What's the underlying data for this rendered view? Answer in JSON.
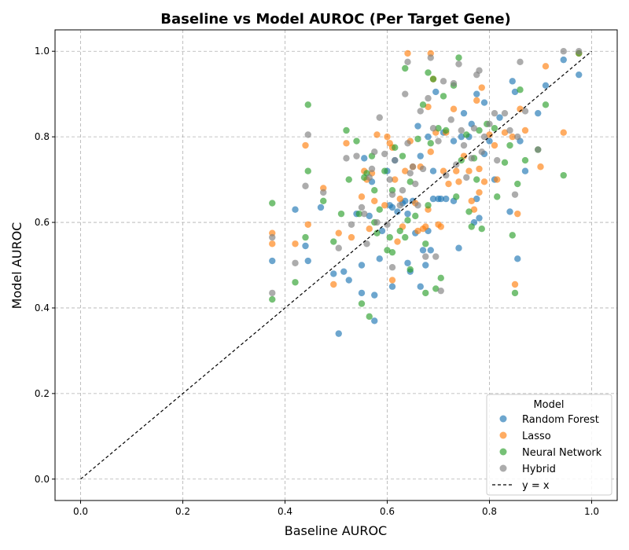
{
  "chart_data": {
    "type": "scatter",
    "title": "Baseline vs Model AUROC (Per Target Gene)",
    "xlabel": "Baseline AUROC",
    "ylabel": "Model AUROC",
    "xlim": [
      -0.05,
      1.05
    ],
    "ylim": [
      -0.05,
      1.05
    ],
    "xticks": [
      "0.0",
      "0.2",
      "0.4",
      "0.6",
      "0.8",
      "1.0"
    ],
    "yticks": [
      "0.0",
      "0.2",
      "0.4",
      "0.6",
      "0.8",
      "1.0"
    ],
    "grid": true,
    "legend_title": "Model",
    "legend_position": "lower-right",
    "reference_line": {
      "label": "y = x",
      "color": "#000000",
      "style": "dashed"
    },
    "series": [
      {
        "name": "Random Forest",
        "color": "#1f77b4",
        "points": [
          [
            0.375,
            0.51
          ],
          [
            0.42,
            0.63
          ],
          [
            0.44,
            0.545
          ],
          [
            0.445,
            0.51
          ],
          [
            0.47,
            0.635
          ],
          [
            0.495,
            0.48
          ],
          [
            0.505,
            0.34
          ],
          [
            0.515,
            0.485
          ],
          [
            0.525,
            0.465
          ],
          [
            0.54,
            0.62
          ],
          [
            0.55,
            0.5
          ],
          [
            0.55,
            0.435
          ],
          [
            0.555,
            0.75
          ],
          [
            0.565,
            0.615
          ],
          [
            0.57,
            0.695
          ],
          [
            0.575,
            0.37
          ],
          [
            0.575,
            0.43
          ],
          [
            0.585,
            0.515
          ],
          [
            0.59,
            0.58
          ],
          [
            0.6,
            0.72
          ],
          [
            0.605,
            0.64
          ],
          [
            0.61,
            0.635
          ],
          [
            0.61,
            0.45
          ],
          [
            0.615,
            0.745
          ],
          [
            0.62,
            0.625
          ],
          [
            0.63,
            0.645
          ],
          [
            0.635,
            0.65
          ],
          [
            0.64,
            0.505
          ],
          [
            0.64,
            0.62
          ],
          [
            0.645,
            0.485
          ],
          [
            0.65,
            0.65
          ],
          [
            0.655,
            0.575
          ],
          [
            0.66,
            0.825
          ],
          [
            0.665,
            0.755
          ],
          [
            0.665,
            0.45
          ],
          [
            0.67,
            0.535
          ],
          [
            0.675,
            0.5
          ],
          [
            0.68,
            0.58
          ],
          [
            0.68,
            0.8
          ],
          [
            0.685,
            0.535
          ],
          [
            0.69,
            0.72
          ],
          [
            0.69,
            0.655
          ],
          [
            0.695,
            0.905
          ],
          [
            0.7,
            0.655
          ],
          [
            0.705,
            0.655
          ],
          [
            0.71,
            0.81
          ],
          [
            0.715,
            0.655
          ],
          [
            0.73,
            0.79
          ],
          [
            0.73,
            0.65
          ],
          [
            0.74,
            0.54
          ],
          [
            0.745,
            0.8
          ],
          [
            0.75,
            0.855
          ],
          [
            0.76,
            0.8
          ],
          [
            0.765,
            0.83
          ],
          [
            0.77,
            0.6
          ],
          [
            0.775,
            0.655
          ],
          [
            0.775,
            0.9
          ],
          [
            0.78,
            0.61
          ],
          [
            0.79,
            0.76
          ],
          [
            0.79,
            0.88
          ],
          [
            0.8,
            0.79
          ],
          [
            0.81,
            0.7
          ],
          [
            0.82,
            0.845
          ],
          [
            0.84,
            0.625
          ],
          [
            0.845,
            0.93
          ],
          [
            0.85,
            0.905
          ],
          [
            0.855,
            0.515
          ],
          [
            0.86,
            0.79
          ],
          [
            0.87,
            0.72
          ],
          [
            0.895,
            0.855
          ],
          [
            0.91,
            0.92
          ],
          [
            0.945,
            0.98
          ],
          [
            0.975,
            0.945
          ]
        ]
      },
      {
        "name": "Lasso",
        "color": "#ff7f0e",
        "points": [
          [
            0.375,
            0.575
          ],
          [
            0.375,
            0.55
          ],
          [
            0.42,
            0.55
          ],
          [
            0.44,
            0.78
          ],
          [
            0.445,
            0.595
          ],
          [
            0.475,
            0.68
          ],
          [
            0.495,
            0.455
          ],
          [
            0.505,
            0.575
          ],
          [
            0.52,
            0.785
          ],
          [
            0.53,
            0.565
          ],
          [
            0.55,
            0.66
          ],
          [
            0.555,
            0.72
          ],
          [
            0.56,
            0.7
          ],
          [
            0.565,
            0.585
          ],
          [
            0.57,
            0.715
          ],
          [
            0.575,
            0.65
          ],
          [
            0.58,
            0.805
          ],
          [
            0.595,
            0.64
          ],
          [
            0.6,
            0.8
          ],
          [
            0.605,
            0.785
          ],
          [
            0.61,
            0.775
          ],
          [
            0.61,
            0.465
          ],
          [
            0.615,
            0.7
          ],
          [
            0.62,
            0.555
          ],
          [
            0.625,
            0.655
          ],
          [
            0.63,
            0.59
          ],
          [
            0.635,
            0.72
          ],
          [
            0.64,
            0.995
          ],
          [
            0.645,
            0.79
          ],
          [
            0.65,
            0.73
          ],
          [
            0.655,
            0.645
          ],
          [
            0.66,
            0.58
          ],
          [
            0.665,
            0.73
          ],
          [
            0.67,
            0.585
          ],
          [
            0.675,
            0.59
          ],
          [
            0.68,
            0.87
          ],
          [
            0.68,
            0.63
          ],
          [
            0.685,
            0.765
          ],
          [
            0.685,
            0.995
          ],
          [
            0.69,
            0.935
          ],
          [
            0.695,
            0.81
          ],
          [
            0.7,
            0.595
          ],
          [
            0.705,
            0.59
          ],
          [
            0.71,
            0.72
          ],
          [
            0.715,
            0.81
          ],
          [
            0.72,
            0.69
          ],
          [
            0.73,
            0.865
          ],
          [
            0.735,
            0.72
          ],
          [
            0.74,
            0.695
          ],
          [
            0.75,
            0.755
          ],
          [
            0.76,
            0.72
          ],
          [
            0.765,
            0.65
          ],
          [
            0.77,
            0.63
          ],
          [
            0.775,
            0.885
          ],
          [
            0.78,
            0.725
          ],
          [
            0.78,
            0.67
          ],
          [
            0.785,
            0.915
          ],
          [
            0.79,
            0.695
          ],
          [
            0.8,
            0.805
          ],
          [
            0.81,
            0.78
          ],
          [
            0.815,
            0.7
          ],
          [
            0.83,
            0.81
          ],
          [
            0.845,
            0.8
          ],
          [
            0.85,
            0.455
          ],
          [
            0.855,
            0.62
          ],
          [
            0.86,
            0.865
          ],
          [
            0.87,
            0.815
          ],
          [
            0.9,
            0.73
          ],
          [
            0.91,
            0.965
          ],
          [
            0.945,
            0.81
          ],
          [
            0.975,
            0.995
          ]
        ]
      },
      {
        "name": "Neural Network",
        "color": "#2ca02c",
        "points": [
          [
            0.375,
            0.645
          ],
          [
            0.375,
            0.42
          ],
          [
            0.42,
            0.46
          ],
          [
            0.44,
            0.565
          ],
          [
            0.445,
            0.875
          ],
          [
            0.445,
            0.72
          ],
          [
            0.475,
            0.65
          ],
          [
            0.495,
            0.555
          ],
          [
            0.51,
            0.62
          ],
          [
            0.52,
            0.815
          ],
          [
            0.525,
            0.7
          ],
          [
            0.54,
            0.79
          ],
          [
            0.545,
            0.62
          ],
          [
            0.55,
            0.41
          ],
          [
            0.555,
            0.705
          ],
          [
            0.56,
            0.715
          ],
          [
            0.565,
            0.38
          ],
          [
            0.57,
            0.755
          ],
          [
            0.575,
            0.675
          ],
          [
            0.575,
            0.6
          ],
          [
            0.58,
            0.575
          ],
          [
            0.585,
            0.63
          ],
          [
            0.595,
            0.72
          ],
          [
            0.6,
            0.535
          ],
          [
            0.605,
            0.565
          ],
          [
            0.61,
            0.53
          ],
          [
            0.61,
            0.675
          ],
          [
            0.615,
            0.775
          ],
          [
            0.625,
            0.58
          ],
          [
            0.63,
            0.755
          ],
          [
            0.635,
            0.96
          ],
          [
            0.635,
            0.565
          ],
          [
            0.64,
            0.605
          ],
          [
            0.645,
            0.49
          ],
          [
            0.645,
            0.695
          ],
          [
            0.655,
            0.615
          ],
          [
            0.66,
            0.795
          ],
          [
            0.67,
            0.875
          ],
          [
            0.675,
            0.55
          ],
          [
            0.675,
            0.435
          ],
          [
            0.68,
            0.64
          ],
          [
            0.68,
            0.95
          ],
          [
            0.685,
            0.785
          ],
          [
            0.69,
            0.935
          ],
          [
            0.695,
            0.445
          ],
          [
            0.7,
            0.82
          ],
          [
            0.705,
            0.47
          ],
          [
            0.71,
            0.895
          ],
          [
            0.715,
            0.815
          ],
          [
            0.73,
            0.92
          ],
          [
            0.735,
            0.66
          ],
          [
            0.74,
            0.985
          ],
          [
            0.745,
            0.745
          ],
          [
            0.755,
            0.805
          ],
          [
            0.76,
            0.625
          ],
          [
            0.765,
            0.59
          ],
          [
            0.77,
            0.75
          ],
          [
            0.775,
            0.7
          ],
          [
            0.78,
            0.815
          ],
          [
            0.785,
            0.585
          ],
          [
            0.795,
            0.83
          ],
          [
            0.81,
            0.82
          ],
          [
            0.815,
            0.66
          ],
          [
            0.83,
            0.74
          ],
          [
            0.84,
            0.78
          ],
          [
            0.845,
            0.57
          ],
          [
            0.85,
            0.435
          ],
          [
            0.855,
            0.69
          ],
          [
            0.86,
            0.91
          ],
          [
            0.87,
            0.745
          ],
          [
            0.895,
            0.77
          ],
          [
            0.91,
            0.875
          ],
          [
            0.945,
            0.71
          ],
          [
            0.975,
            0.995
          ]
        ]
      },
      {
        "name": "Hybrid",
        "color": "#7f7f7f",
        "points": [
          [
            0.375,
            0.565
          ],
          [
            0.375,
            0.435
          ],
          [
            0.42,
            0.505
          ],
          [
            0.44,
            0.685
          ],
          [
            0.445,
            0.805
          ],
          [
            0.475,
            0.67
          ],
          [
            0.505,
            0.54
          ],
          [
            0.52,
            0.75
          ],
          [
            0.53,
            0.595
          ],
          [
            0.54,
            0.755
          ],
          [
            0.55,
            0.635
          ],
          [
            0.555,
            0.62
          ],
          [
            0.56,
            0.55
          ],
          [
            0.565,
            0.705
          ],
          [
            0.57,
            0.725
          ],
          [
            0.575,
            0.765
          ],
          [
            0.58,
            0.6
          ],
          [
            0.585,
            0.845
          ],
          [
            0.595,
            0.76
          ],
          [
            0.6,
            0.595
          ],
          [
            0.605,
            0.7
          ],
          [
            0.61,
            0.665
          ],
          [
            0.61,
            0.495
          ],
          [
            0.615,
            0.745
          ],
          [
            0.625,
            0.64
          ],
          [
            0.63,
            0.675
          ],
          [
            0.635,
            0.9
          ],
          [
            0.64,
            0.785
          ],
          [
            0.64,
            0.975
          ],
          [
            0.645,
            0.715
          ],
          [
            0.65,
            0.73
          ],
          [
            0.655,
            0.69
          ],
          [
            0.66,
            0.64
          ],
          [
            0.665,
            0.86
          ],
          [
            0.67,
            0.725
          ],
          [
            0.675,
            0.52
          ],
          [
            0.68,
            0.89
          ],
          [
            0.685,
            0.985
          ],
          [
            0.69,
            0.82
          ],
          [
            0.695,
            0.52
          ],
          [
            0.7,
            0.79
          ],
          [
            0.705,
            0.44
          ],
          [
            0.71,
            0.93
          ],
          [
            0.715,
            0.71
          ],
          [
            0.725,
            0.84
          ],
          [
            0.73,
            0.925
          ],
          [
            0.735,
            0.735
          ],
          [
            0.74,
            0.97
          ],
          [
            0.745,
            0.815
          ],
          [
            0.75,
            0.78
          ],
          [
            0.755,
            0.705
          ],
          [
            0.765,
            0.75
          ],
          [
            0.77,
            0.82
          ],
          [
            0.775,
            0.945
          ],
          [
            0.78,
            0.955
          ],
          [
            0.785,
            0.765
          ],
          [
            0.79,
            0.8
          ],
          [
            0.8,
            0.83
          ],
          [
            0.81,
            0.855
          ],
          [
            0.815,
            0.745
          ],
          [
            0.83,
            0.855
          ],
          [
            0.84,
            0.815
          ],
          [
            0.85,
            0.665
          ],
          [
            0.855,
            0.8
          ],
          [
            0.86,
            0.975
          ],
          [
            0.87,
            0.86
          ],
          [
            0.895,
            0.77
          ],
          [
            0.945,
            1.0
          ],
          [
            0.975,
            1.0
          ]
        ]
      }
    ]
  }
}
